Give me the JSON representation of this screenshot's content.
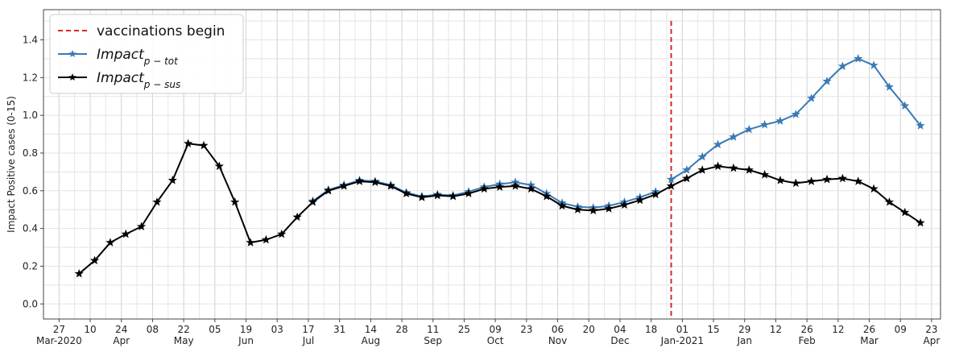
{
  "chart_data": {
    "type": "line",
    "ylabel": "Impact Positive cases (0-15)",
    "ylim": [
      -0.08,
      1.56
    ],
    "yticks": [
      0.0,
      0.2,
      0.4,
      0.6,
      0.8,
      1.0,
      1.2,
      1.4
    ],
    "grid": true,
    "legend_position": "top-left",
    "x_start": "2020-03-20",
    "x_end": "2021-04-27",
    "xticks": [
      {
        "date": "2020-03-27",
        "day": "27",
        "month": "Mar-2020"
      },
      {
        "date": "2020-04-10",
        "day": "10",
        "month": ""
      },
      {
        "date": "2020-04-24",
        "day": "24",
        "month": "Apr"
      },
      {
        "date": "2020-05-08",
        "day": "08",
        "month": ""
      },
      {
        "date": "2020-05-22",
        "day": "22",
        "month": "May"
      },
      {
        "date": "2020-06-05",
        "day": "05",
        "month": ""
      },
      {
        "date": "2020-06-19",
        "day": "19",
        "month": "Jun"
      },
      {
        "date": "2020-07-03",
        "day": "03",
        "month": ""
      },
      {
        "date": "2020-07-17",
        "day": "17",
        "month": "Jul"
      },
      {
        "date": "2020-07-31",
        "day": "31",
        "month": ""
      },
      {
        "date": "2020-08-14",
        "day": "14",
        "month": "Aug"
      },
      {
        "date": "2020-08-28",
        "day": "28",
        "month": ""
      },
      {
        "date": "2020-09-11",
        "day": "11",
        "month": "Sep"
      },
      {
        "date": "2020-09-25",
        "day": "25",
        "month": ""
      },
      {
        "date": "2020-10-09",
        "day": "09",
        "month": "Oct"
      },
      {
        "date": "2020-10-23",
        "day": "23",
        "month": ""
      },
      {
        "date": "2020-11-06",
        "day": "06",
        "month": "Nov"
      },
      {
        "date": "2020-11-20",
        "day": "20",
        "month": ""
      },
      {
        "date": "2020-12-04",
        "day": "04",
        "month": "Dec"
      },
      {
        "date": "2020-12-18",
        "day": "18",
        "month": ""
      },
      {
        "date": "2021-01-01",
        "day": "01",
        "month": "Jan-2021"
      },
      {
        "date": "2021-01-15",
        "day": "15",
        "month": ""
      },
      {
        "date": "2021-01-29",
        "day": "29",
        "month": "Jan"
      },
      {
        "date": "2021-02-12",
        "day": "12",
        "month": ""
      },
      {
        "date": "2021-02-26",
        "day": "26",
        "month": "Feb"
      },
      {
        "date": "2021-03-12",
        "day": "12",
        "month": ""
      },
      {
        "date": "2021-03-26",
        "day": "26",
        "month": "Mar"
      },
      {
        "date": "2021-04-09",
        "day": "09",
        "month": ""
      },
      {
        "date": "2021-04-23",
        "day": "23",
        "month": "Apr"
      }
    ],
    "vline": {
      "date": "2020-12-27",
      "label": "vaccinations begin",
      "color": "#d62728",
      "ymax": 1.5
    },
    "series": [
      {
        "name": "Impact",
        "name_sub": "p − tot",
        "color": "#3a7ab5",
        "dates": [
          "2020-12-27",
          "2021-01-03",
          "2021-01-10",
          "2021-01-17",
          "2021-01-24",
          "2021-01-31",
          "2021-02-07",
          "2021-02-14",
          "2021-02-21",
          "2021-02-28",
          "2021-03-07",
          "2021-03-14",
          "2021-03-21",
          "2021-03-28",
          "2021-04-04",
          "2021-04-11",
          "2021-04-18"
        ],
        "values": [
          0.66,
          0.71,
          0.78,
          0.845,
          0.885,
          0.925,
          0.95,
          0.97,
          1.005,
          1.09,
          1.18,
          1.26,
          1.3,
          1.265,
          1.15,
          1.05,
          0.945
        ]
      },
      {
        "name": "Impact",
        "name_sub": "p − sus",
        "color": "#000000",
        "dates": [
          "2020-04-05",
          "2020-04-12",
          "2020-04-19",
          "2020-04-26",
          "2020-05-03",
          "2020-05-10",
          "2020-05-17",
          "2020-05-24",
          "2020-05-31",
          "2020-06-07",
          "2020-06-14",
          "2020-06-21",
          "2020-06-28",
          "2020-07-05",
          "2020-07-12",
          "2020-07-19",
          "2020-07-26",
          "2020-08-02",
          "2020-08-09",
          "2020-08-16",
          "2020-08-23",
          "2020-08-30",
          "2020-09-06",
          "2020-09-13",
          "2020-09-20",
          "2020-09-27",
          "2020-10-04",
          "2020-10-11",
          "2020-10-18",
          "2020-10-25",
          "2020-11-01",
          "2020-11-08",
          "2020-11-15",
          "2020-11-22",
          "2020-11-29",
          "2020-12-06",
          "2020-12-13",
          "2020-12-20",
          "2020-12-27",
          "2021-01-03",
          "2021-01-10",
          "2021-01-17",
          "2021-01-24",
          "2021-01-31",
          "2021-02-07",
          "2021-02-14",
          "2021-02-21",
          "2021-02-28",
          "2021-03-07",
          "2021-03-14",
          "2021-03-21",
          "2021-03-28",
          "2021-04-04",
          "2021-04-11",
          "2021-04-18"
        ],
        "values": [
          0.16,
          0.23,
          0.325,
          0.37,
          0.41,
          0.54,
          0.655,
          0.85,
          0.84,
          0.73,
          0.54,
          0.325,
          0.34,
          0.37,
          0.46,
          0.54,
          0.6,
          0.625,
          0.65,
          0.645,
          0.625,
          0.585,
          0.565,
          0.575,
          0.57,
          0.585,
          0.61,
          0.62,
          0.625,
          0.61,
          0.57,
          0.52,
          0.5,
          0.495,
          0.505,
          0.525,
          0.55,
          0.58,
          0.625,
          0.665,
          0.71,
          0.73,
          0.72,
          0.71,
          0.685,
          0.655,
          0.64,
          0.65,
          0.66,
          0.665,
          0.65,
          0.61,
          0.54,
          0.485,
          0.43
        ]
      },
      {
        "name": "Impact",
        "name_sub": "p − tot",
        "color": "#3a7ab5",
        "dates": [
          "2020-07-19",
          "2020-07-26",
          "2020-08-02",
          "2020-08-09",
          "2020-08-16",
          "2020-08-23",
          "2020-08-30",
          "2020-09-06",
          "2020-09-13",
          "2020-09-20",
          "2020-09-27",
          "2020-10-04",
          "2020-10-11",
          "2020-10-18",
          "2020-10-25",
          "2020-11-01",
          "2020-11-08",
          "2020-11-15",
          "2020-11-22",
          "2020-11-29",
          "2020-12-06",
          "2020-12-13",
          "2020-12-20"
        ],
        "values": [
          0.545,
          0.605,
          0.63,
          0.655,
          0.65,
          0.63,
          0.59,
          0.57,
          0.58,
          0.575,
          0.595,
          0.62,
          0.635,
          0.645,
          0.63,
          0.585,
          0.535,
          0.515,
          0.51,
          0.52,
          0.54,
          0.565,
          0.595
        ]
      }
    ],
    "legend": [
      {
        "label": "vaccinations begin",
        "style": "dashed",
        "color": "#d62728"
      },
      {
        "label": "Impact",
        "sub": "p − tot",
        "style": "line-star",
        "color": "#3a7ab5"
      },
      {
        "label": "Impact",
        "sub": "p − sus",
        "style": "line-star",
        "color": "#000000"
      }
    ]
  }
}
